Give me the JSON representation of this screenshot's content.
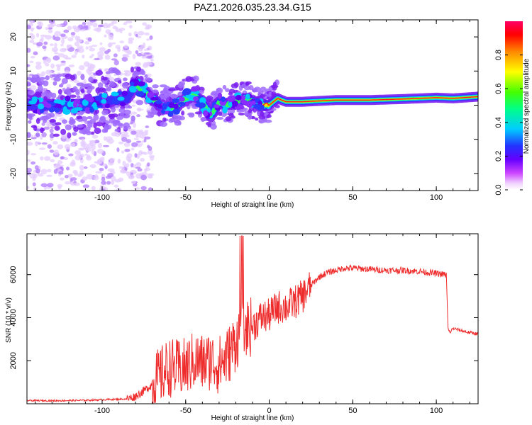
{
  "title": "PAZ1.2026.035.23.34.G15",
  "colors": {
    "snr_line": "#ee2c2c",
    "axis": "#000000",
    "colormap": [
      "#ffffff",
      "#ffd7ff",
      "#ff33ff",
      "#8800ff",
      "#2222ff",
      "#00ccff",
      "#00ff44",
      "#ffff00",
      "#ff8800",
      "#ff0000",
      "#ff0066"
    ]
  },
  "chart_data": [
    {
      "type": "heatmap",
      "name": "spectrogram",
      "xlabel": "Height of straight line (km)",
      "ylabel": "Frequency (Hz)",
      "xlim": [
        -145,
        125
      ],
      "ylim": [
        -25,
        25
      ],
      "xticks": [
        -100,
        -50,
        0,
        50,
        100
      ],
      "xtick_labels": [
        "-100",
        "-50",
        "0",
        "50",
        "100"
      ],
      "yticks": [
        20,
        10,
        0,
        -10,
        -20
      ],
      "ytick_labels": [
        "20",
        "10",
        "0",
        "-10",
        "-20"
      ],
      "grid": false,
      "description_ridge": {
        "x": [
          -145,
          -120,
          -100,
          -85,
          -80,
          -75,
          -70,
          -65,
          -60,
          -55,
          -50,
          -45,
          -40,
          -35,
          -30,
          -25,
          -20,
          -15,
          -10,
          -5,
          0,
          5,
          10,
          20,
          40,
          60,
          80,
          100,
          110,
          125
        ],
        "y": [
          0,
          0,
          1,
          2,
          6,
          4,
          2,
          0,
          -1,
          0,
          2,
          3,
          1,
          -3,
          1,
          0,
          1,
          2,
          1,
          0,
          0,
          2,
          1,
          1,
          1.5,
          1.5,
          1.8,
          2.2,
          2.0,
          2.5
        ]
      },
      "colorbar": {
        "label": "Normalized spectral amplitude",
        "ticks": [
          0.0,
          0.2,
          0.4,
          0.6,
          0.8
        ],
        "tick_labels": [
          "0.0",
          "0.2",
          "0.4",
          "0.6",
          "0.8"
        ],
        "range": [
          0,
          1
        ]
      }
    },
    {
      "type": "line",
      "name": "snr",
      "xlabel": "Height of straight line (km)",
      "ylabel": "SNR (10 * v/v)",
      "xlim": [
        -145,
        125
      ],
      "ylim": [
        0,
        7900
      ],
      "xticks": [
        -100,
        -50,
        0,
        50,
        100
      ],
      "xtick_labels": [
        "-100",
        "-50",
        "0",
        "50",
        "100"
      ],
      "yticks": [
        2000,
        4000,
        6000
      ],
      "ytick_labels": [
        "2000",
        "4000",
        "6000"
      ],
      "grid": false,
      "series": [
        {
          "name": "SNR",
          "x": [
            -145,
            -130,
            -110,
            -95,
            -85,
            -80,
            -75,
            -70,
            -65,
            -60,
            -55,
            -50,
            -45,
            -40,
            -35,
            -30,
            -25,
            -20,
            -17,
            -15,
            -10,
            -5,
            0,
            5,
            10,
            15,
            20,
            25,
            30,
            35,
            40,
            45,
            50,
            60,
            70,
            80,
            90,
            95,
            100,
            105,
            106,
            107,
            108,
            110,
            115,
            120,
            125
          ],
          "y": [
            150,
            140,
            160,
            200,
            220,
            350,
            600,
            900,
            1300,
            1700,
            1600,
            1700,
            2000,
            1900,
            2000,
            1800,
            2200,
            2900,
            3300,
            3500,
            3600,
            4000,
            4100,
            4500,
            4500,
            4700,
            5000,
            5500,
            5900,
            6100,
            6200,
            6300,
            6300,
            6250,
            6200,
            6200,
            6150,
            6100,
            6050,
            6000,
            6000,
            3500,
            3300,
            3500,
            3400,
            3300,
            3250
          ]
        }
      ]
    }
  ]
}
